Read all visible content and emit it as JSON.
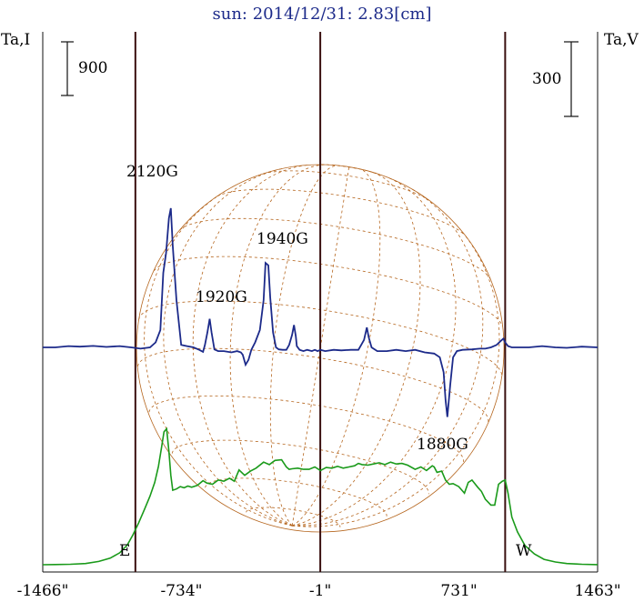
{
  "chart_data": {
    "type": "line",
    "title": "sun: 2014/12/31: 2.83[cm]",
    "left_axis_label": "Ta,I",
    "right_axis_label": "Ta,V",
    "left_scale_bar": {
      "label": "900",
      "value": 900
    },
    "right_scale_bar": {
      "label": "300",
      "value": 300
    },
    "x_ticks": [
      {
        "label": "-1466\"",
        "value": -1466
      },
      {
        "label": "-734\"",
        "value": -734
      },
      {
        "label": "-1\"",
        "value": -1
      },
      {
        "label": "731\"",
        "value": 731
      },
      {
        "label": "1463\"",
        "value": 1463
      }
    ],
    "xlim": [
      -1466,
      1463
    ],
    "limb_markers": [
      {
        "label": "E",
        "x": -977
      },
      {
        "label": "W",
        "x": 975
      }
    ],
    "center_line_x": -1,
    "annotations": [
      {
        "text": "2120G",
        "x": -790,
        "y_I": 1230
      },
      {
        "text": "1940G",
        "x": -190,
        "y_I": 920
      },
      {
        "text": "1920G",
        "x": -515,
        "y_I": 720
      },
      {
        "text": "1880G",
        "x": 660,
        "y_I": -270
      }
    ],
    "series": [
      {
        "key": "I",
        "color": "#1a9a1a",
        "x": [
          -1466,
          -1400,
          -1320,
          -1240,
          -1170,
          -1110,
          -1060,
          -1020,
          -990,
          -960,
          -930,
          -900,
          -875,
          -855,
          -840,
          -826,
          -812,
          -800,
          -790,
          -780,
          -760,
          -740,
          -720,
          -700,
          -680,
          -650,
          -620,
          -600,
          -570,
          -540,
          -510,
          -480,
          -455,
          -430,
          -400,
          -370,
          -340,
          -300,
          -270,
          -240,
          -205,
          -180,
          -165,
          -150,
          -120,
          -90,
          -60,
          -30,
          0,
          30,
          60,
          90,
          120,
          150,
          180,
          200,
          220,
          250,
          280,
          310,
          340,
          370,
          400,
          430,
          460,
          500,
          530,
          560,
          590,
          600,
          615,
          640,
          660,
          680,
          700,
          730,
          760,
          780,
          800,
          830,
          850,
          870,
          900,
          920,
          940,
          960,
          975,
          990,
          1010,
          1040,
          1080,
          1130,
          1180,
          1240,
          1300,
          1380,
          1463
        ],
        "values": [
          0,
          3,
          8,
          20,
          55,
          110,
          200,
          330,
          500,
          700,
          920,
          1150,
          1380,
          1650,
          1950,
          2230,
          2280,
          1900,
          1500,
          1250,
          1270,
          1310,
          1290,
          1320,
          1300,
          1330,
          1410,
          1370,
          1350,
          1420,
          1400,
          1450,
          1400,
          1590,
          1500,
          1570,
          1620,
          1720,
          1680,
          1750,
          1760,
          1640,
          1600,
          1610,
          1620,
          1600,
          1600,
          1640,
          1580,
          1630,
          1620,
          1650,
          1620,
          1640,
          1660,
          1700,
          1680,
          1670,
          1690,
          1710,
          1680,
          1720,
          1690,
          1700,
          1670,
          1600,
          1640,
          1580,
          1660,
          1640,
          1550,
          1570,
          1420,
          1350,
          1360,
          1310,
          1200,
          1380,
          1420,
          1300,
          1230,
          1100,
          1000,
          1000,
          1350,
          1400,
          1420,
          1200,
          800,
          550,
          320,
          180,
          90,
          45,
          20,
          8,
          2
        ]
      },
      {
        "key": "V",
        "color": "#1c2a8a",
        "x": [
          -1466,
          -1400,
          -1330,
          -1270,
          -1200,
          -1130,
          -1060,
          -1000,
          -950,
          -900,
          -870,
          -845,
          -830,
          -815,
          -800,
          -790,
          -780,
          -760,
          -735,
          -705,
          -670,
          -640,
          -620,
          -610,
          -597,
          -585,
          -575,
          -560,
          -540,
          -510,
          -470,
          -440,
          -420,
          -410,
          -395,
          -380,
          -365,
          -345,
          -320,
          -300,
          -290,
          -275,
          -265,
          -250,
          -235,
          -220,
          -200,
          -180,
          -165,
          -150,
          -140,
          -130,
          -125,
          -110,
          -90,
          -70,
          -45,
          -30,
          -15,
          0,
          25,
          70,
          110,
          160,
          200,
          215,
          230,
          245,
          255,
          270,
          300,
          350,
          400,
          450,
          500,
          550,
          600,
          630,
          650,
          660,
          670,
          685,
          700,
          720,
          750,
          800,
          840,
          870,
          900,
          930,
          950,
          965,
          975,
          990,
          1010,
          1050,
          1100,
          1170,
          1240,
          1300,
          1380,
          1463
        ],
        "values": [
          0,
          0,
          5,
          3,
          6,
          2,
          5,
          0,
          -5,
          0,
          20,
          70,
          300,
          380,
          520,
          560,
          410,
          190,
          10,
          5,
          0,
          -10,
          -18,
          10,
          60,
          115,
          60,
          -8,
          -15,
          -15,
          -20,
          -15,
          -20,
          -30,
          -70,
          -50,
          -10,
          20,
          70,
          190,
          340,
          330,
          200,
          60,
          0,
          -8,
          -10,
          -10,
          10,
          50,
          90,
          45,
          5,
          -10,
          -15,
          -10,
          -15,
          -10,
          -15,
          -10,
          -15,
          -10,
          -12,
          -10,
          -10,
          10,
          30,
          80,
          40,
          0,
          -15,
          -15,
          -10,
          -15,
          -10,
          -20,
          -25,
          -40,
          -100,
          -210,
          -280,
          -150,
          -40,
          -15,
          -10,
          -8,
          -5,
          -5,
          0,
          10,
          25,
          35,
          20,
          5,
          0,
          0,
          0,
          5,
          0,
          -2,
          3,
          0
        ]
      }
    ],
    "colors": {
      "intensity": "#1a9a1a",
      "polarization": "#1c2a8a",
      "disk_grid": "#b5651d",
      "markers": "#3a0f0f",
      "title": "#1c2a8a"
    },
    "grid": false,
    "legend": "none"
  }
}
